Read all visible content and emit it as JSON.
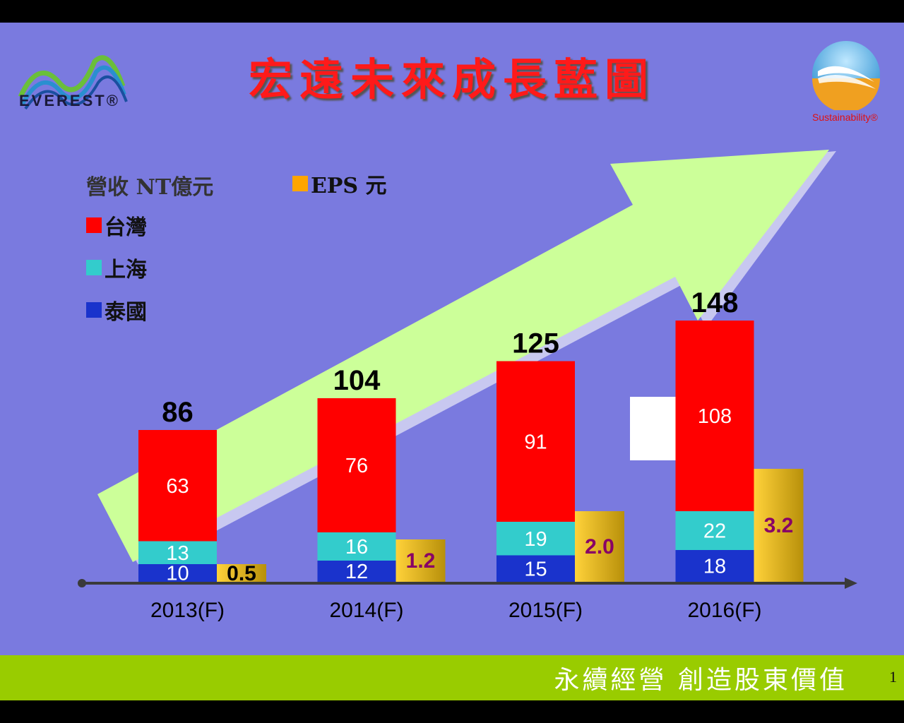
{
  "title": "宏遠未來成長藍圖",
  "logo": {
    "text": "EVEREST®"
  },
  "sustainability": {
    "text": "Sustainability®"
  },
  "legend": {
    "revenue_label": "營收 NT億元",
    "eps_label": "EPS 元",
    "taiwan": "台灣",
    "shanghai": "上海",
    "thailand": "泰國"
  },
  "colors": {
    "background": "#7a7adf",
    "taiwan": "#ff0000",
    "shanghai": "#33cccc",
    "thailand": "#1a33cc",
    "eps": "#e6b800",
    "arrow": "#ccff99",
    "footer": "#99cc00"
  },
  "chart_data": {
    "type": "bar",
    "categories": [
      "2013(F)",
      "2014(F)",
      "2015(F)",
      "2016(F)"
    ],
    "series": [
      {
        "name": "泰國",
        "values": [
          10,
          12,
          15,
          18
        ]
      },
      {
        "name": "上海",
        "values": [
          13,
          16,
          19,
          22
        ]
      },
      {
        "name": "台灣",
        "values": [
          63,
          76,
          91,
          108
        ]
      }
    ],
    "totals": [
      86,
      104,
      125,
      148
    ],
    "eps": {
      "name": "EPS 元",
      "values": [
        0.5,
        1.2,
        2.0,
        3.2
      ],
      "labels": [
        "0.5",
        "1.2",
        "2.0",
        "3.2"
      ]
    },
    "stacked": true,
    "ylim": [
      0,
      150
    ]
  },
  "footer": {
    "text": "永續經營 創造股東價值",
    "page": "1"
  }
}
